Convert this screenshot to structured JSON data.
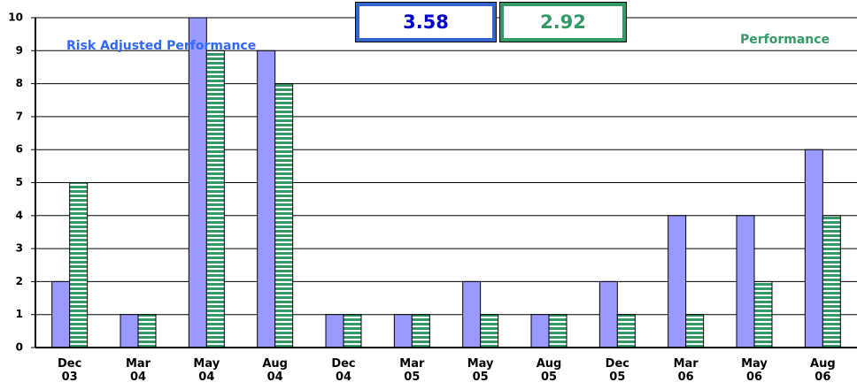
{
  "chart_data": {
    "type": "bar",
    "categories": [
      "Dec 03",
      "Mar 04",
      "May 04",
      "Aug 04",
      "Dec 04",
      "Mar 05",
      "May 05",
      "Aug 05",
      "Dec 05",
      "Mar 06",
      "May 06",
      "Aug 06"
    ],
    "series": [
      {
        "name": "Risk Adjusted Performance",
        "color": "#9999ff",
        "values": [
          2,
          1,
          10,
          9,
          1,
          1,
          2,
          1,
          2,
          4,
          4,
          6
        ]
      },
      {
        "name": "Performance",
        "color": "#339966",
        "values": [
          5,
          1,
          9,
          8,
          1,
          1,
          1,
          1,
          1,
          1,
          2,
          4
        ]
      }
    ],
    "summary": [
      3.58,
      2.92
    ],
    "ylim": [
      0,
      10
    ],
    "yticks": [
      0,
      1,
      2,
      3,
      4,
      5,
      6,
      7,
      8,
      9,
      10
    ],
    "grid": true
  }
}
